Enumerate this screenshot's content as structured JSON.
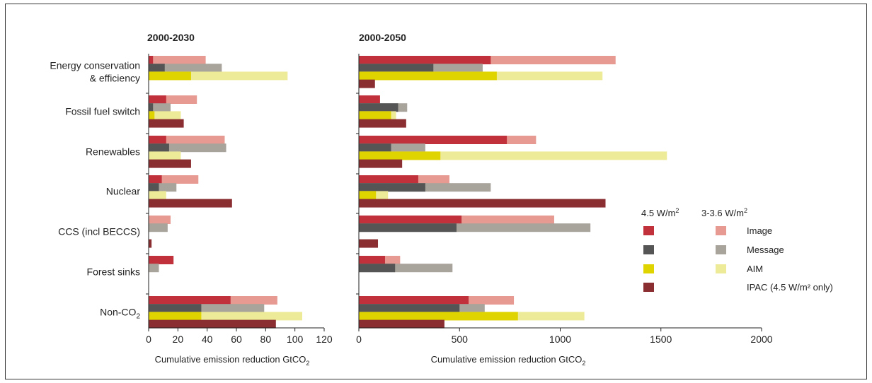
{
  "colors": {
    "image_dark": "#c0313b",
    "image_light": "#e79a91",
    "message_dark": "#555555",
    "message_light": "#a8a39b",
    "aim_dark": "#dfd400",
    "aim_light": "#eeeb98",
    "ipac": "#8b2e32",
    "axis": "#222222"
  },
  "chart_data": [
    {
      "type": "bar",
      "orientation": "horizontal",
      "title": "2000-2030",
      "xlabel": "Cumulative emission reduction GtCO",
      "xlabel_subscript": "2",
      "xlim": [
        0,
        120
      ],
      "xticks": [
        0,
        20,
        40,
        60,
        80,
        100,
        120
      ],
      "categories": [
        "Energy conservation & efficiency",
        "Fossil fuel switch",
        "Renewables",
        "Nuclear",
        "CCS (incl BECCS)",
        "Forest sinks",
        "Non-CO2"
      ],
      "series": [
        {
          "name": "Image",
          "values_4_5": [
            3,
            12,
            12,
            9,
            0,
            17,
            56
          ],
          "values_3_3_6": [
            39,
            33,
            52,
            34,
            15,
            17,
            88
          ]
        },
        {
          "name": "Message",
          "values_4_5": [
            11,
            3,
            14,
            7,
            0,
            0,
            36
          ],
          "values_3_3_6": [
            50,
            15,
            53,
            19,
            13,
            7,
            79
          ]
        },
        {
          "name": "AIM",
          "values_4_5": [
            29,
            4,
            0,
            0,
            0,
            0,
            36
          ],
          "values_3_3_6": [
            95,
            22,
            22,
            12,
            0,
            0,
            105
          ]
        },
        {
          "name": "IPAC (4.5 W/m² only)",
          "values_4_5": [
            0,
            24,
            29,
            57,
            2,
            0,
            87
          ],
          "values_3_3_6": [
            0,
            0,
            0,
            0,
            0,
            0,
            0
          ]
        }
      ]
    },
    {
      "type": "bar",
      "orientation": "horizontal",
      "title": "2000-2050",
      "xlabel": "Cumulative emission reduction GtCO",
      "xlabel_subscript": "2",
      "xlim": [
        0,
        2000
      ],
      "xticks": [
        0,
        500,
        1000,
        1500,
        2000
      ],
      "categories": [
        "Energy conservation & efficiency",
        "Fossil fuel switch",
        "Renewables",
        "Nuclear",
        "CCS (incl BECCS)",
        "Forest sinks",
        "Non-CO2"
      ],
      "series": [
        {
          "name": "Image",
          "values_4_5": [
            655,
            105,
            735,
            295,
            510,
            130,
            545
          ],
          "values_3_3_6": [
            1275,
            105,
            880,
            450,
            970,
            205,
            770
          ]
        },
        {
          "name": "Message",
          "values_4_5": [
            370,
            195,
            160,
            330,
            485,
            180,
            500
          ],
          "values_3_3_6": [
            615,
            240,
            330,
            655,
            1150,
            465,
            625
          ]
        },
        {
          "name": "AIM",
          "values_4_5": [
            685,
            160,
            405,
            85,
            0,
            0,
            790
          ],
          "values_3_3_6": [
            1210,
            185,
            1530,
            145,
            0,
            0,
            1120
          ]
        },
        {
          "name": "IPAC (4.5 W/m² only)",
          "values_4_5": [
            80,
            235,
            215,
            1225,
            95,
            0,
            425
          ],
          "values_3_3_6": [
            0,
            0,
            0,
            0,
            0,
            0,
            0
          ]
        }
      ]
    }
  ],
  "category_labels": [
    [
      "Energy conservation",
      "& efficiency"
    ],
    [
      "Fossil fuel switch"
    ],
    [
      "Renewables"
    ],
    [
      "Nuclear"
    ],
    [
      "CCS (incl BECCS)"
    ],
    [
      "Forest sinks"
    ],
    [
      "Non-CO",
      "2"
    ]
  ],
  "legend": {
    "col1_header": "4.5 W/m",
    "col2_header": "3-3.6 W/m",
    "superscript": "2",
    "items": [
      "Image",
      "Message",
      "AIM",
      "IPAC (4.5 W/m² only)"
    ]
  }
}
